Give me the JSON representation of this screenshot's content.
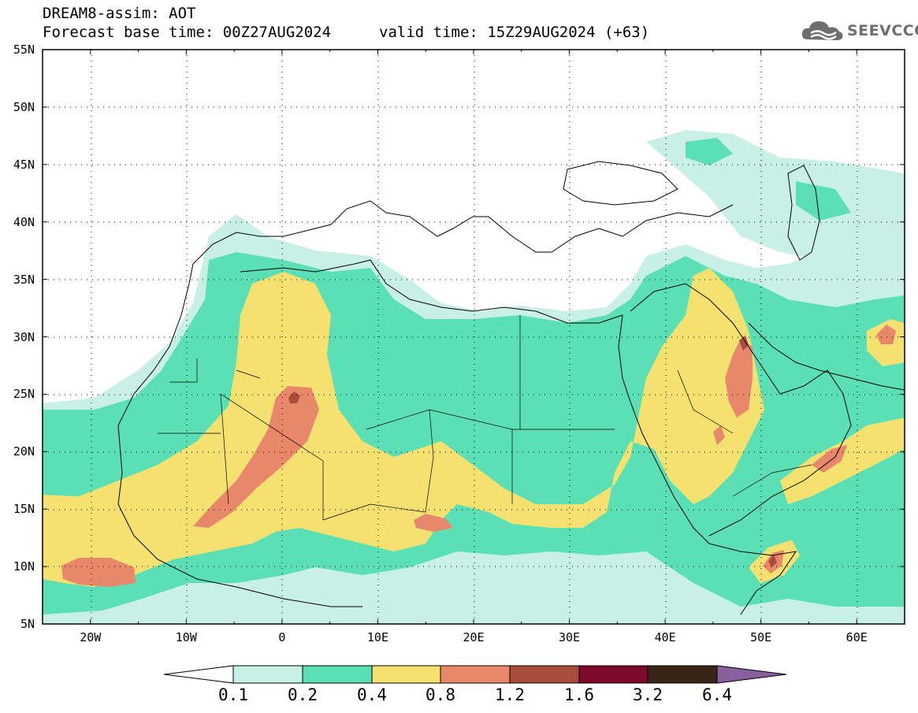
{
  "header": {
    "line1": "DREAM8-assim: AOT",
    "line2": "Forecast base time: 00Z27AUG2024",
    "valid": "valid time: 15Z29AUG2024 (+63)",
    "logo_text": "SEEVCCC"
  },
  "map": {
    "lat_labels": [
      "55N",
      "50N",
      "45N",
      "40N",
      "35N",
      "30N",
      "25N",
      "20N",
      "15N",
      "10N",
      "5N"
    ],
    "lon_labels": [
      "20W",
      "10W",
      "0",
      "10E",
      "20E",
      "30E",
      "40E",
      "50E",
      "60E"
    ],
    "lon_range": [
      -25,
      65
    ],
    "lat_range": [
      5,
      55
    ]
  },
  "colorbar": {
    "labels": [
      "0.1",
      "0.2",
      "0.4",
      "0.8",
      "1.2",
      "1.6",
      "3.2",
      "6.4"
    ],
    "colors": [
      "#ffffff",
      "#c8f0e6",
      "#5ae0b4",
      "#f5e170",
      "#e8876a",
      "#a84c3c",
      "#7c0a28",
      "#3a2418",
      "#8a5fa0"
    ]
  },
  "levels": {
    "c1": "#c8f0e6",
    "c2": "#5ae0b4",
    "c3": "#f5e170",
    "c4": "#e8876a",
    "c5": "#a84c3c"
  }
}
